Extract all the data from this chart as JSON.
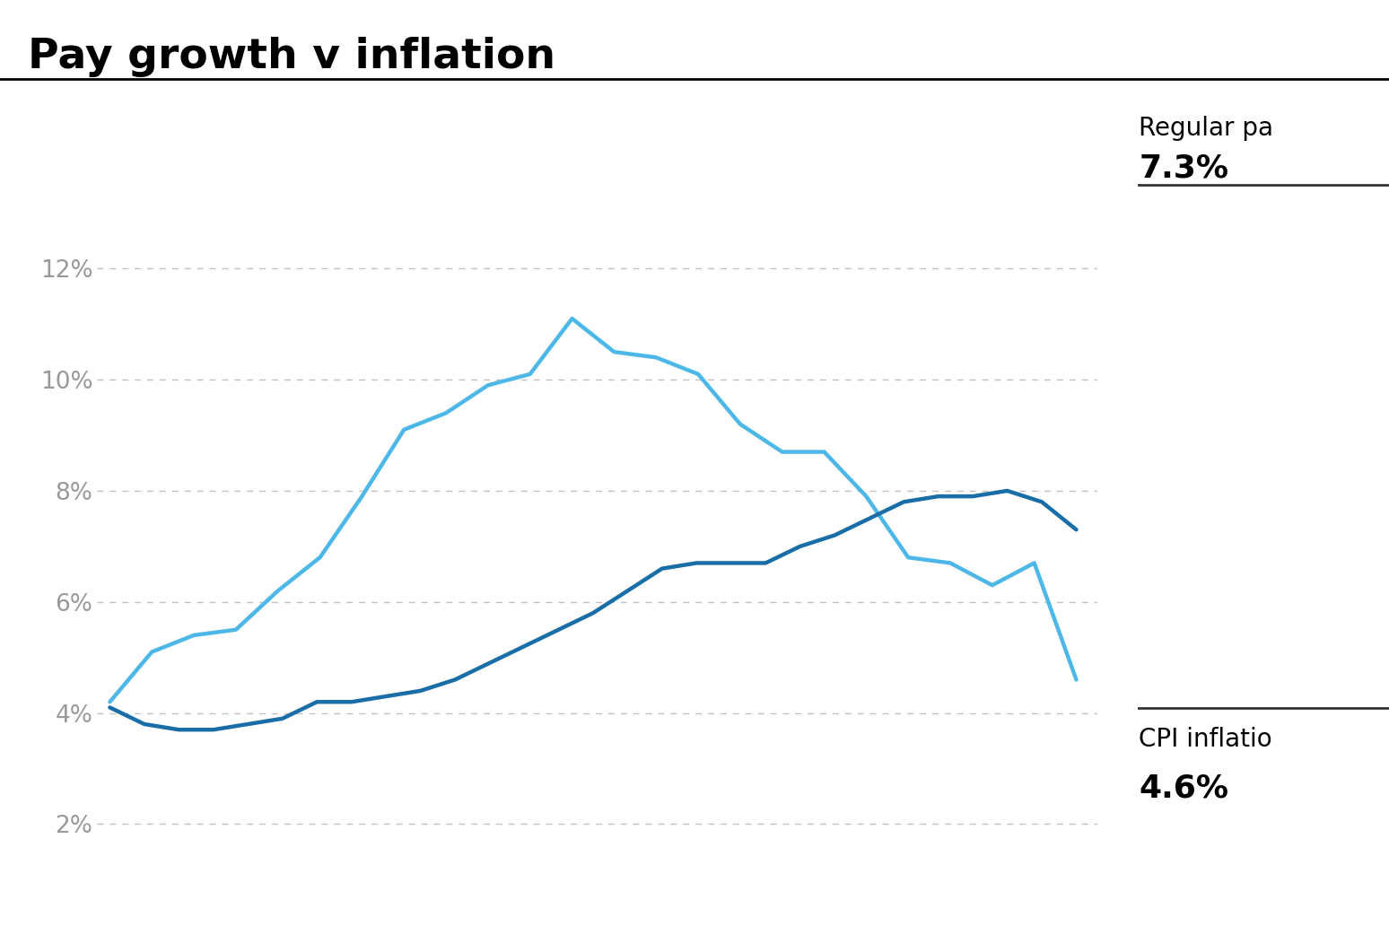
{
  "title": "Pay growth v inflation",
  "title_fontsize": 34,
  "title_fontweight": "bold",
  "background_color": "#ffffff",
  "regular_pay_label": "Regular pa",
  "regular_pay_value": "7.3%",
  "cpi_label": "CPI inflatio",
  "cpi_value": "4.6%",
  "ylim": [
    1.5,
    13.5
  ],
  "yticks": [
    2,
    4,
    6,
    8,
    10,
    12
  ],
  "ytick_labels": [
    "2%",
    "4%",
    "6%",
    "8%",
    "10%",
    "12%"
  ],
  "regular_pay_color": "#1a6ea8",
  "cpi_color": "#4db8e8",
  "regular_pay_data": [
    4.1,
    3.8,
    3.7,
    3.7,
    3.8,
    3.9,
    4.2,
    4.2,
    4.3,
    4.4,
    4.6,
    4.9,
    5.2,
    5.5,
    5.8,
    6.2,
    6.6,
    6.7,
    6.7,
    6.7,
    7.0,
    7.2,
    7.5,
    7.8,
    7.9,
    7.9,
    8.0,
    7.8,
    7.3
  ],
  "cpi_data": [
    4.2,
    5.1,
    5.4,
    5.5,
    6.2,
    6.8,
    7.9,
    9.1,
    9.4,
    9.9,
    10.1,
    11.1,
    10.5,
    10.4,
    10.1,
    9.2,
    8.7,
    8.7,
    7.9,
    6.8,
    6.7,
    6.3,
    6.7,
    4.6
  ],
  "label_fontsize": 20,
  "value_fontsize": 26,
  "tick_fontsize": 19,
  "tick_color": "#999999"
}
